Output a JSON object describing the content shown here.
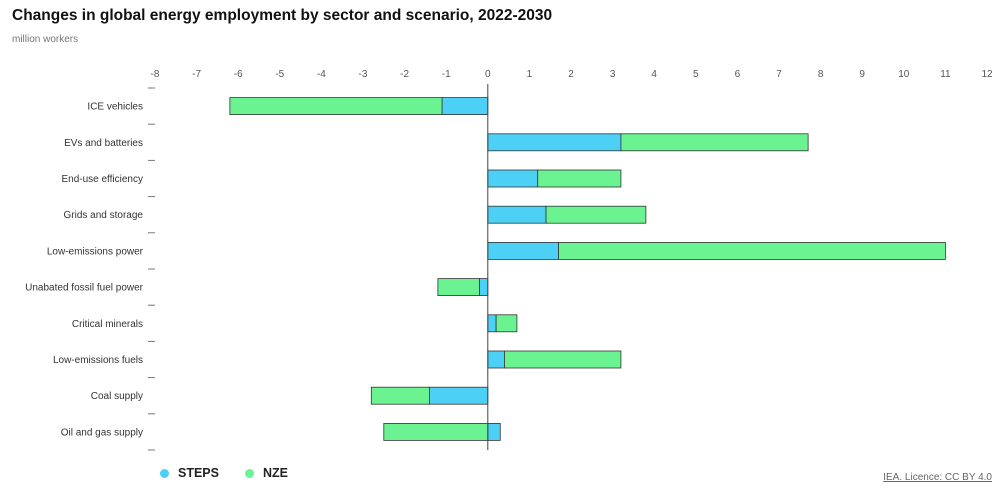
{
  "header": {
    "title": "Changes in global energy employment by sector and scenario, 2022-2030",
    "subtitle": "million workers"
  },
  "legend": {
    "items": [
      {
        "label": "STEPS",
        "color": "#4dd0f5"
      },
      {
        "label": "NZE",
        "color": "#6bf291"
      }
    ]
  },
  "source": {
    "label": "IEA. Licence: CC BY 4.0"
  },
  "chart_data": {
    "type": "bar",
    "orientation": "horizontal",
    "stacked": true,
    "categories": [
      "ICE vehicles",
      "EVs and batteries",
      "End-use efficiency",
      "Grids and storage",
      "Low-emissions power",
      "Unabated fossil fuel power",
      "Critical minerals",
      "Low-emissions fuels",
      "Coal supply",
      "Oil and gas supply"
    ],
    "series": [
      {
        "name": "STEPS",
        "color": "#4dd0f5",
        "values": [
          -1.1,
          3.2,
          1.2,
          1.4,
          1.7,
          -0.2,
          0.2,
          0.4,
          -1.4,
          0.3
        ]
      },
      {
        "name": "NZE",
        "color": "#6bf291",
        "values": [
          -5.1,
          4.5,
          2.0,
          2.4,
          9.3,
          -1.0,
          0.5,
          2.8,
          -1.4,
          -2.5
        ]
      }
    ],
    "xlim": [
      -8,
      12
    ],
    "xticks": [
      -8,
      -7,
      -6,
      -5,
      -4,
      -3,
      -2,
      -1,
      0,
      1,
      2,
      3,
      4,
      5,
      6,
      7,
      8,
      9,
      10,
      11,
      12
    ],
    "xlabel": "",
    "ylabel": "million workers",
    "grid": false,
    "legend_position": "bottom-left"
  }
}
